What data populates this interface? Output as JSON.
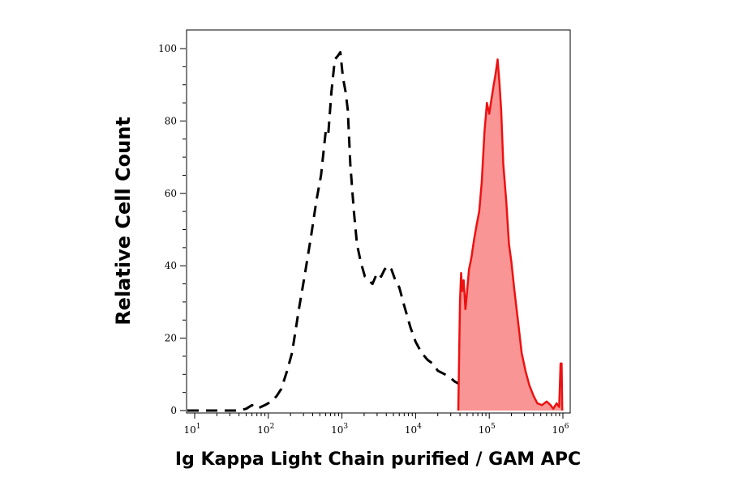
{
  "chart_data": {
    "type": "area",
    "xlabel": "Ig Kappa Light Chain purified / GAM APC",
    "ylabel": "Relative Cell Count",
    "x_scale": "log",
    "xlim": [
      10,
      1000000
    ],
    "ylim": [
      0,
      100
    ],
    "x_ticks": [
      {
        "value": 10,
        "base": "10",
        "exp": "1"
      },
      {
        "value": 100,
        "base": "10",
        "exp": "2"
      },
      {
        "value": 1000,
        "base": "10",
        "exp": "3"
      },
      {
        "value": 10000,
        "base": "10",
        "exp": "4"
      },
      {
        "value": 100000,
        "base": "10",
        "exp": "5"
      },
      {
        "value": 1000000,
        "base": "10",
        "exp": "6"
      }
    ],
    "y_ticks": [
      0,
      20,
      40,
      60,
      80,
      100
    ],
    "grid": false,
    "series": [
      {
        "style": "dashed",
        "color": "#000000",
        "fill": "none",
        "points": [
          [
            5,
            0
          ],
          [
            40,
            0
          ],
          [
            50,
            0.5
          ],
          [
            60,
            1.5
          ],
          [
            70,
            0.5
          ],
          [
            90,
            1.5
          ],
          [
            110,
            2.5
          ],
          [
            130,
            4
          ],
          [
            150,
            6
          ],
          [
            180,
            11
          ],
          [
            210,
            16
          ],
          [
            260,
            28
          ],
          [
            310,
            37
          ],
          [
            380,
            48
          ],
          [
            450,
            58
          ],
          [
            520,
            65
          ],
          [
            600,
            77
          ],
          [
            650,
            76
          ],
          [
            720,
            88
          ],
          [
            800,
            97
          ],
          [
            880,
            98
          ],
          [
            950,
            99
          ],
          [
            1030,
            92
          ],
          [
            1120,
            88
          ],
          [
            1200,
            83
          ],
          [
            1300,
            68
          ],
          [
            1450,
            55
          ],
          [
            1600,
            46
          ],
          [
            1800,
            41
          ],
          [
            2050,
            37
          ],
          [
            2300,
            36
          ],
          [
            2600,
            35
          ],
          [
            3000,
            38
          ],
          [
            3400,
            37
          ],
          [
            3800,
            39
          ],
          [
            4200,
            40
          ],
          [
            4700,
            39
          ],
          [
            5300,
            36
          ],
          [
            6000,
            34
          ],
          [
            7000,
            29
          ],
          [
            8500,
            23
          ],
          [
            10000,
            19
          ],
          [
            12000,
            16
          ],
          [
            14500,
            14
          ],
          [
            17000,
            13
          ],
          [
            20000,
            11
          ],
          [
            25000,
            10
          ],
          [
            30000,
            9
          ],
          [
            34000,
            8
          ],
          [
            38000,
            7.5
          ]
        ]
      },
      {
        "style": "solid",
        "color": "#ee1111",
        "fill": "#f99595",
        "points": [
          [
            38000,
            0
          ],
          [
            40000,
            30
          ],
          [
            41500,
            38
          ],
          [
            43000,
            33
          ],
          [
            45000,
            36
          ],
          [
            47500,
            28
          ],
          [
            50000,
            33
          ],
          [
            53000,
            39
          ],
          [
            57000,
            42
          ],
          [
            62000,
            47
          ],
          [
            67000,
            51
          ],
          [
            73000,
            55
          ],
          [
            79000,
            63
          ],
          [
            86000,
            77
          ],
          [
            93000,
            85
          ],
          [
            100000,
            82
          ],
          [
            107000,
            86
          ],
          [
            115000,
            90
          ],
          [
            122000,
            93
          ],
          [
            130000,
            97
          ],
          [
            137000,
            91
          ],
          [
            145000,
            83
          ],
          [
            155000,
            68
          ],
          [
            170000,
            58
          ],
          [
            185000,
            46
          ],
          [
            200000,
            41
          ],
          [
            220000,
            33
          ],
          [
            245000,
            25
          ],
          [
            275000,
            16
          ],
          [
            310000,
            11
          ],
          [
            350000,
            7
          ],
          [
            400000,
            4
          ],
          [
            450000,
            2
          ],
          [
            520000,
            1.5
          ],
          [
            600000,
            2.5
          ],
          [
            680000,
            1.5
          ],
          [
            740000,
            0.5
          ],
          [
            820000,
            2
          ],
          [
            890000,
            1
          ],
          [
            930000,
            13
          ],
          [
            960000,
            13
          ],
          [
            980000,
            0
          ]
        ]
      }
    ]
  }
}
